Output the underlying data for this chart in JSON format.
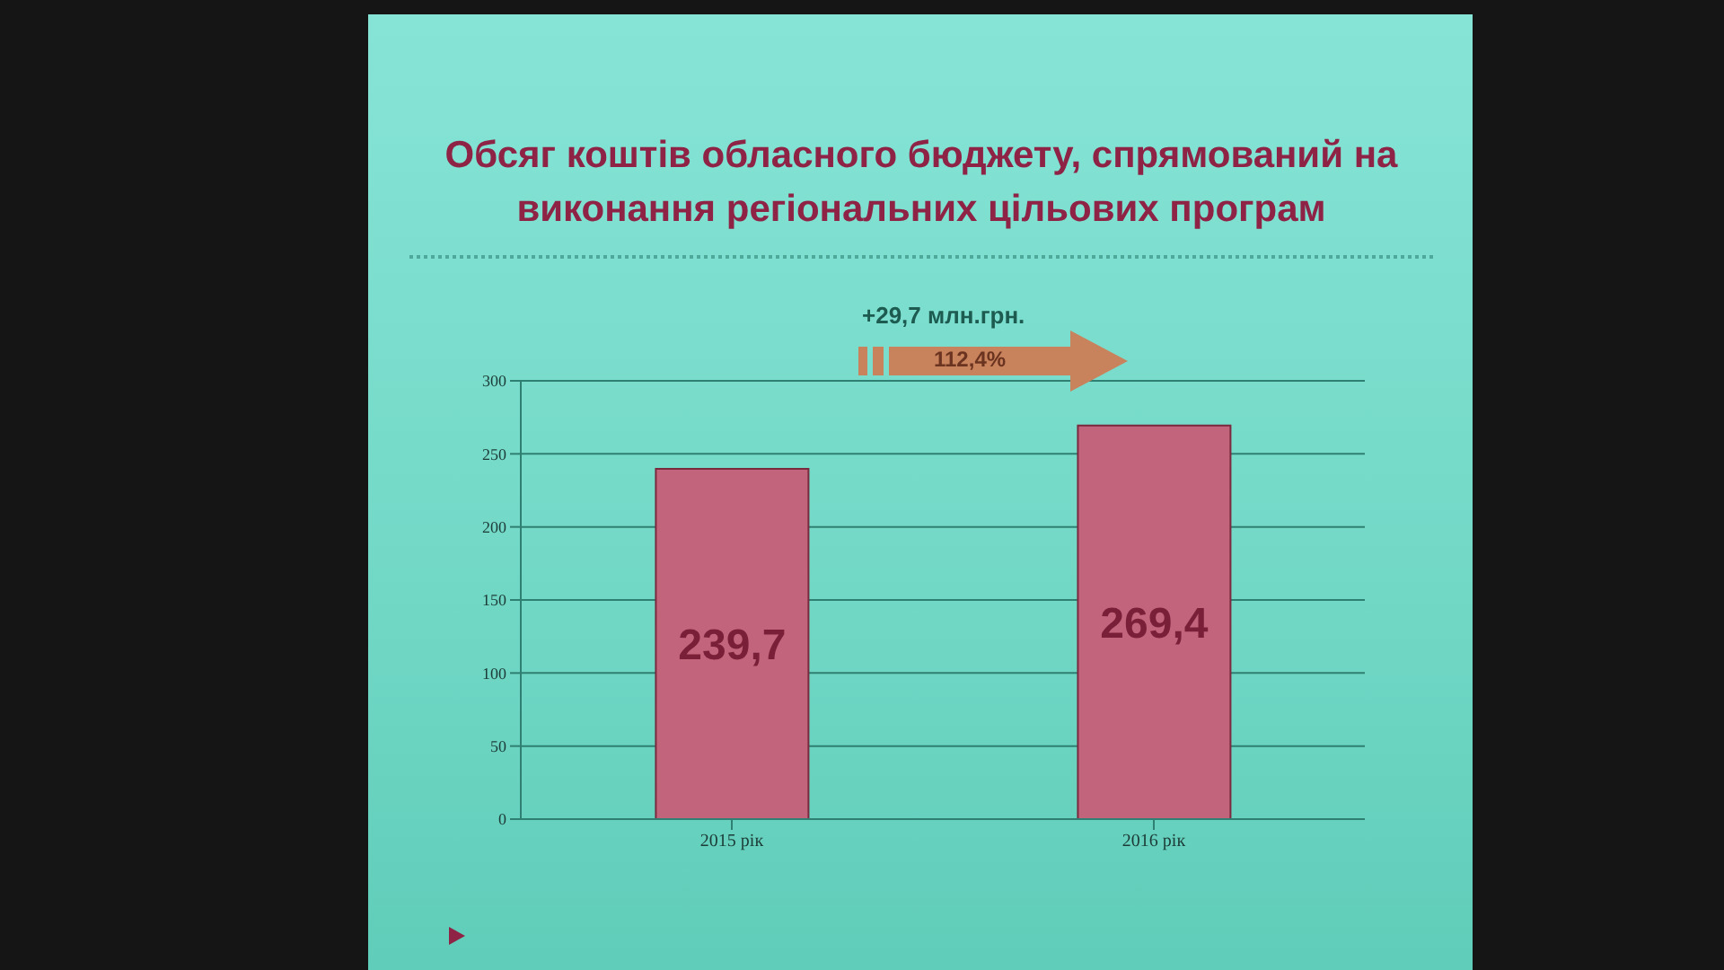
{
  "chart_data": {
    "type": "bar",
    "title": "Обсяг коштів обласного бюджету, спрямований на виконання регіональних цільових програм",
    "categories": [
      "2015 рік",
      "2016 рік"
    ],
    "values": [
      239.7,
      269.4
    ],
    "value_labels": [
      "239,7",
      "269,4"
    ],
    "color": "#c2647c",
    "ylim": [
      0,
      300
    ],
    "yticks": [
      0,
      50,
      100,
      150,
      200,
      250,
      300
    ],
    "grid": "y",
    "annotations": [
      "+29,7 млн.грн.",
      "112,4%"
    ]
  }
}
